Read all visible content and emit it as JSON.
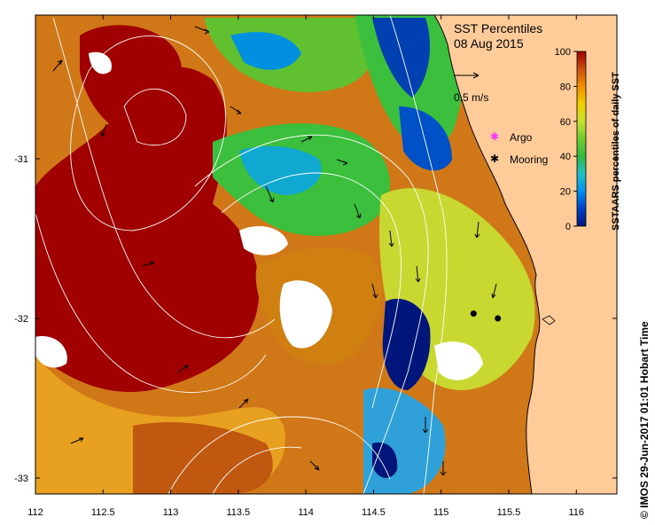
{
  "title": "SST Percentiles",
  "date": "08 Aug 2015",
  "scale_arrow_label": "0.5 m/s",
  "legend": {
    "argo_label": "Argo",
    "mooring_label": "Mooring",
    "argo_color": "#ff33ff",
    "mooring_color": "#000000"
  },
  "colorbar": {
    "label": "SSTAARS percentiles of daily SST",
    "ticks": [
      "0",
      "20",
      "40",
      "60",
      "80",
      "100"
    ],
    "colors": [
      "#00167a",
      "#0050e0",
      "#00b4ff",
      "#29c5a0",
      "#3cbf3c",
      "#9cd93c",
      "#f0e000",
      "#f2a000",
      "#d06000",
      "#b03010",
      "#a00000"
    ]
  },
  "credit": "© IMOS 29-Jun-2017 01:01 Hobart Time",
  "x_axis": {
    "ticks": [
      "112",
      "112.5",
      "113",
      "113.5",
      "114",
      "114.5",
      "115",
      "115.5",
      "116"
    ],
    "range": [
      112,
      116.3
    ]
  },
  "y_axis": {
    "ticks": [
      "-31",
      "-32",
      "-33"
    ],
    "range": [
      -33.1,
      -30.1
    ]
  },
  "land_color": "#ffcc99",
  "mooring_positions": [
    {
      "lon": 115.24,
      "lat": -31.97
    },
    {
      "lon": 115.42,
      "lat": -32.0
    }
  ]
}
